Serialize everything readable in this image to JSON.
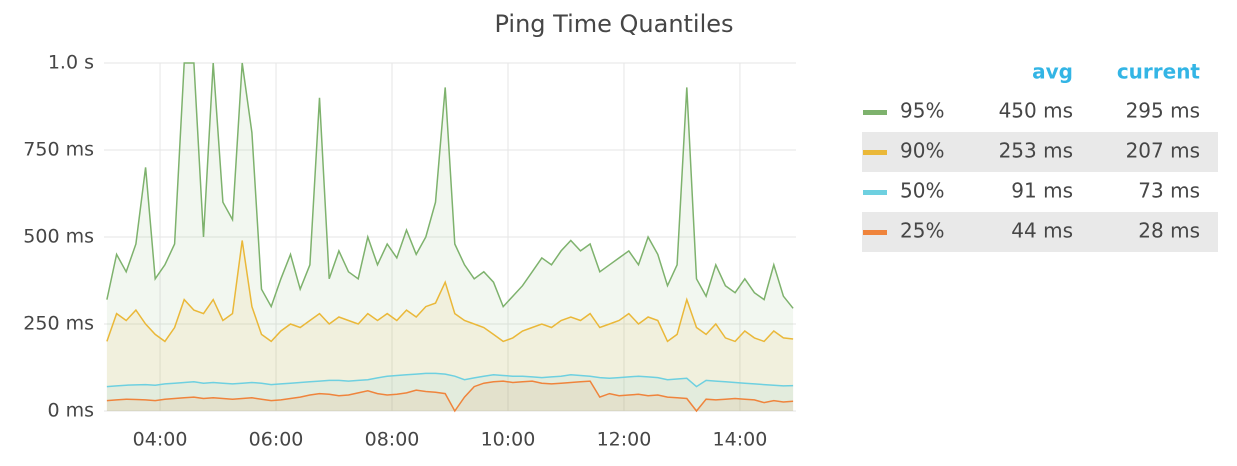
{
  "chart_data": {
    "type": "line",
    "title": "Ping Time Quantiles",
    "x": [
      "03:05",
      "03:15",
      "03:25",
      "03:35",
      "03:45",
      "03:55",
      "04:05",
      "04:15",
      "04:25",
      "04:35",
      "04:45",
      "04:55",
      "05:05",
      "05:15",
      "05:25",
      "05:35",
      "05:45",
      "05:55",
      "06:05",
      "06:15",
      "06:25",
      "06:35",
      "06:45",
      "06:55",
      "07:05",
      "07:15",
      "07:25",
      "07:35",
      "07:45",
      "07:55",
      "08:05",
      "08:15",
      "08:25",
      "08:35",
      "08:45",
      "08:55",
      "09:05",
      "09:15",
      "09:25",
      "09:35",
      "09:45",
      "09:55",
      "10:05",
      "10:15",
      "10:25",
      "10:35",
      "10:45",
      "10:55",
      "11:05",
      "11:15",
      "11:25",
      "11:35",
      "11:45",
      "11:55",
      "12:05",
      "12:15",
      "12:25",
      "12:35",
      "12:45",
      "12:55",
      "13:05",
      "13:15",
      "13:25",
      "13:35",
      "13:45",
      "13:55",
      "14:05",
      "14:15",
      "14:25",
      "14:35",
      "14:45",
      "14:55"
    ],
    "xlim": [
      "03:02",
      "14:58"
    ],
    "xticks": [
      "04:00",
      "06:00",
      "08:00",
      "10:00",
      "12:00",
      "14:00"
    ],
    "ylim": [
      0,
      1000
    ],
    "yticks": [
      {
        "value": 0,
        "label": "0 ms"
      },
      {
        "value": 250,
        "label": "250 ms"
      },
      {
        "value": 500,
        "label": "500 ms"
      },
      {
        "value": 750,
        "label": "750 ms"
      },
      {
        "value": 1000,
        "label": "1.0 s"
      }
    ],
    "grid": true,
    "legend": {
      "position": "right",
      "columns": [
        "avg",
        "current"
      ]
    },
    "series": [
      {
        "name": "95%",
        "color": "#7eb26d",
        "avg": "450 ms",
        "current": "295 ms",
        "values": [
          320,
          450,
          400,
          480,
          700,
          380,
          420,
          480,
          1000,
          1000,
          500,
          1000,
          600,
          550,
          1000,
          800,
          350,
          300,
          380,
          450,
          350,
          420,
          900,
          380,
          460,
          400,
          380,
          500,
          420,
          480,
          440,
          520,
          450,
          500,
          600,
          930,
          480,
          420,
          380,
          400,
          370,
          300,
          330,
          360,
          400,
          440,
          420,
          460,
          490,
          460,
          480,
          400,
          420,
          440,
          460,
          420,
          500,
          450,
          360,
          420,
          930,
          380,
          330,
          420,
          360,
          340,
          380,
          340,
          320,
          420,
          330,
          295
        ]
      },
      {
        "name": "90%",
        "color": "#eab839",
        "avg": "253 ms",
        "current": "207 ms",
        "values": [
          200,
          280,
          260,
          290,
          250,
          220,
          200,
          240,
          320,
          290,
          280,
          320,
          260,
          280,
          490,
          300,
          220,
          200,
          230,
          250,
          240,
          260,
          280,
          250,
          270,
          260,
          250,
          280,
          260,
          280,
          260,
          290,
          270,
          300,
          310,
          370,
          280,
          260,
          250,
          240,
          220,
          200,
          210,
          230,
          240,
          250,
          240,
          260,
          270,
          260,
          280,
          240,
          250,
          260,
          280,
          250,
          270,
          260,
          200,
          220,
          320,
          240,
          220,
          250,
          210,
          200,
          230,
          210,
          200,
          230,
          210,
          207
        ]
      },
      {
        "name": "50%",
        "color": "#6ed0e0",
        "avg": "91 ms",
        "current": "73 ms",
        "values": [
          70,
          72,
          74,
          75,
          76,
          74,
          78,
          80,
          82,
          84,
          80,
          82,
          80,
          78,
          80,
          82,
          80,
          76,
          78,
          80,
          82,
          84,
          86,
          88,
          88,
          86,
          88,
          90,
          95,
          100,
          102,
          104,
          106,
          108,
          108,
          106,
          100,
          90,
          95,
          100,
          104,
          102,
          100,
          100,
          98,
          96,
          98,
          100,
          104,
          102,
          100,
          96,
          94,
          96,
          98,
          100,
          98,
          96,
          90,
          92,
          94,
          70,
          88,
          86,
          84,
          82,
          80,
          78,
          76,
          74,
          72,
          73
        ]
      },
      {
        "name": "25%",
        "color": "#ef843c",
        "avg": "44 ms",
        "current": "28 ms",
        "values": [
          30,
          32,
          34,
          33,
          32,
          30,
          34,
          36,
          38,
          40,
          36,
          38,
          36,
          34,
          36,
          38,
          34,
          30,
          32,
          36,
          40,
          46,
          50,
          48,
          44,
          46,
          52,
          58,
          50,
          46,
          48,
          52,
          60,
          56,
          54,
          50,
          0,
          40,
          70,
          80,
          84,
          86,
          82,
          84,
          86,
          80,
          78,
          80,
          82,
          84,
          86,
          40,
          50,
          44,
          46,
          48,
          44,
          46,
          40,
          38,
          36,
          0,
          34,
          32,
          34,
          36,
          34,
          32,
          24,
          30,
          26,
          28
        ]
      }
    ]
  }
}
